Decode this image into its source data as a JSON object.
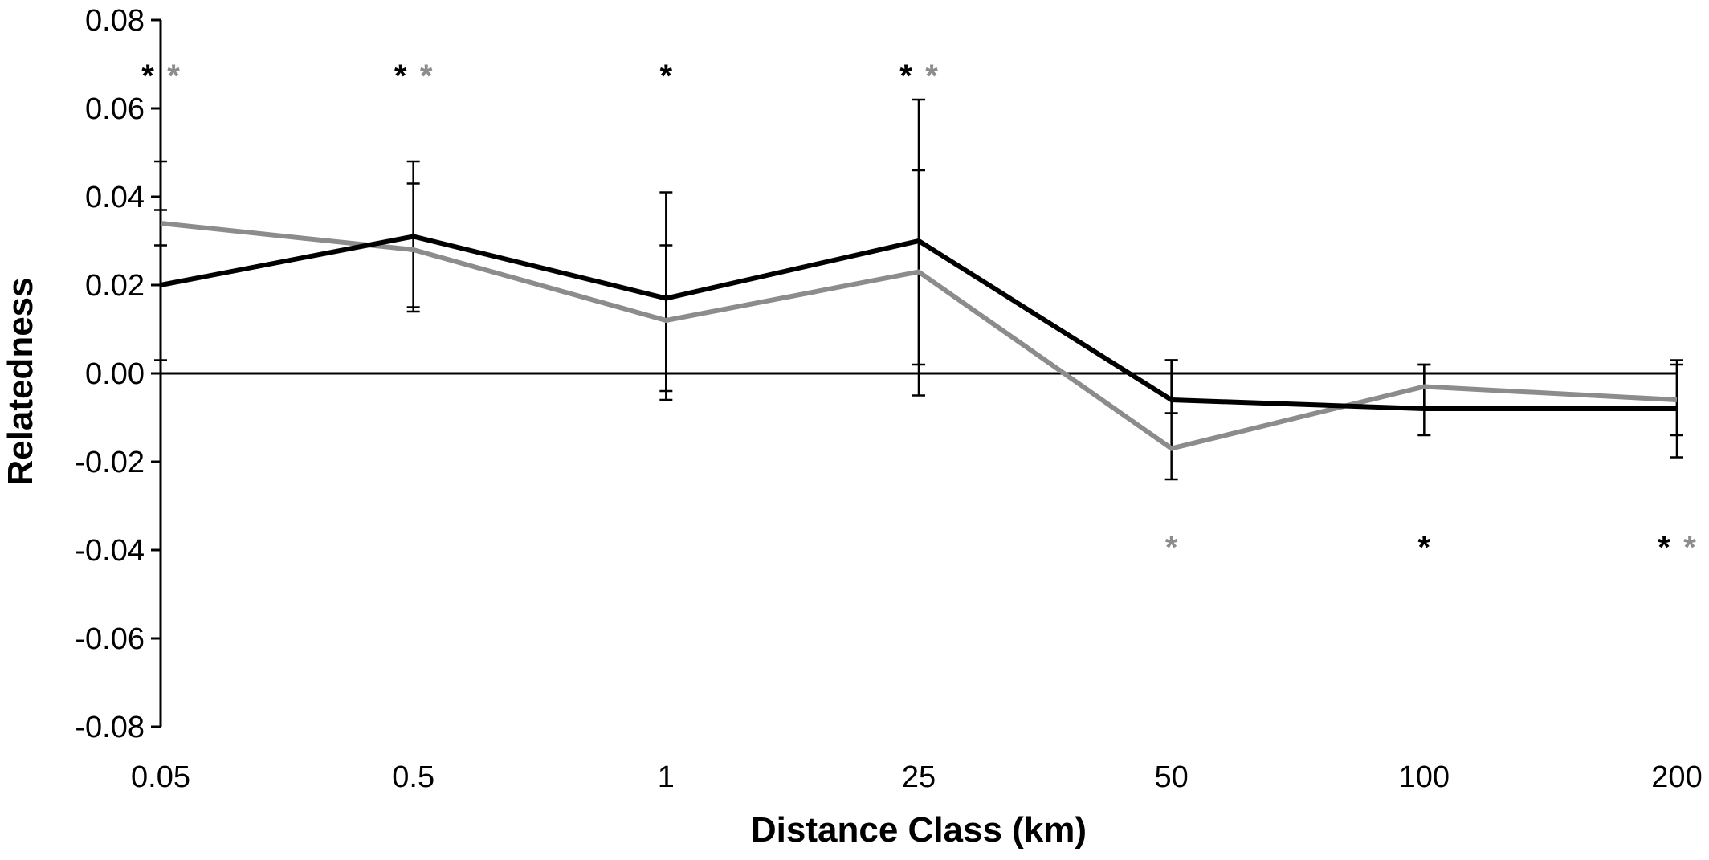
{
  "chart_data": {
    "type": "line",
    "title": "",
    "xlabel": "Distance Class (km)",
    "ylabel": "Relatedness",
    "categories": [
      "0.05",
      "0.5",
      "1",
      "25",
      "50",
      "100",
      "200"
    ],
    "ylim": [
      -0.08,
      0.08
    ],
    "yticks": [
      "0.08",
      "0.06",
      "0.04",
      "0.02",
      "0.00",
      "-0.02",
      "-0.04",
      "-0.06",
      "-0.08"
    ],
    "grid": false,
    "legend": "none",
    "zero_line": true,
    "series": [
      {
        "color": "#000000",
        "values": [
          0.02,
          0.031,
          0.017,
          0.03,
          -0.006,
          -0.008,
          -0.008
        ],
        "error_upper": [
          0.048,
          0.048,
          0.041,
          0.062,
          0.003,
          0.002,
          0.002
        ],
        "error_lower": [
          0.003,
          0.014,
          -0.006,
          0.002,
          -0.024,
          -0.014,
          -0.019
        ]
      },
      {
        "color": "#8c8c8c",
        "values": [
          0.034,
          0.028,
          0.012,
          0.023,
          -0.017,
          -0.003,
          -0.006
        ],
        "error_upper": [
          0.037,
          0.043,
          0.029,
          0.046,
          0.003,
          0.002,
          0.003
        ],
        "error_lower": [
          0.029,
          0.015,
          -0.004,
          -0.005,
          -0.009,
          -0.008,
          -0.014
        ]
      }
    ],
    "annotations": [
      {
        "category": "0.05",
        "text": "*",
        "color": "#000000",
        "position": "top"
      },
      {
        "category": "0.05",
        "text": "*",
        "color": "#8c8c8c",
        "position": "top"
      },
      {
        "category": "0.5",
        "text": "*",
        "color": "#000000",
        "position": "top"
      },
      {
        "category": "0.5",
        "text": "*",
        "color": "#8c8c8c",
        "position": "top"
      },
      {
        "category": "1",
        "text": "*",
        "color": "#000000",
        "position": "top"
      },
      {
        "category": "25",
        "text": "*",
        "color": "#000000",
        "position": "top"
      },
      {
        "category": "25",
        "text": "*",
        "color": "#8c8c8c",
        "position": "top"
      },
      {
        "category": "50",
        "text": "*",
        "color": "#8c8c8c",
        "position": "bottom"
      },
      {
        "category": "100",
        "text": "*",
        "color": "#000000",
        "position": "bottom"
      },
      {
        "category": "200",
        "text": "*",
        "color": "#000000",
        "position": "bottom"
      },
      {
        "category": "200",
        "text": "*",
        "color": "#8c8c8c",
        "position": "bottom"
      }
    ]
  }
}
